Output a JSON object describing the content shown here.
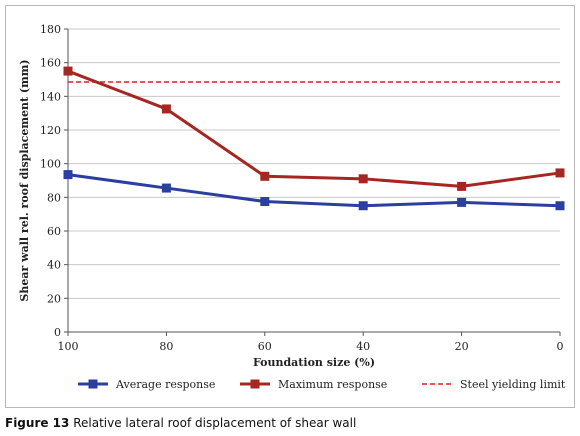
{
  "caption": {
    "number": "Figure 13",
    "text": "Relative lateral roof displacement of shear wall"
  },
  "chart_data": {
    "type": "line",
    "title": "",
    "xlabel": "Foundation size (%)",
    "ylabel": "Shear wall rel. roof displacement (mm)",
    "x": [
      100,
      80,
      60,
      40,
      20,
      0
    ],
    "x_reversed": true,
    "xlim": [
      100,
      0
    ],
    "ylim": [
      0,
      180
    ],
    "yticks": [
      0,
      20,
      40,
      60,
      80,
      100,
      120,
      140,
      160,
      180
    ],
    "grid": "horizontal",
    "legend_position": "bottom",
    "series": [
      {
        "name": "Average response",
        "values": [
          93.5,
          85.5,
          77.5,
          75,
          77,
          75
        ],
        "color": "#2b3f9e",
        "marker": "square",
        "style": "solid"
      },
      {
        "name": "Maximum response",
        "values": [
          155,
          132.5,
          92.5,
          91,
          86.5,
          94.5
        ],
        "color": "#a62622",
        "marker": "square",
        "style": "solid"
      }
    ],
    "reference_lines": [
      {
        "name": "Steel yielding limit",
        "y": 148.5,
        "color": "#e02020",
        "style": "dashed"
      }
    ]
  }
}
